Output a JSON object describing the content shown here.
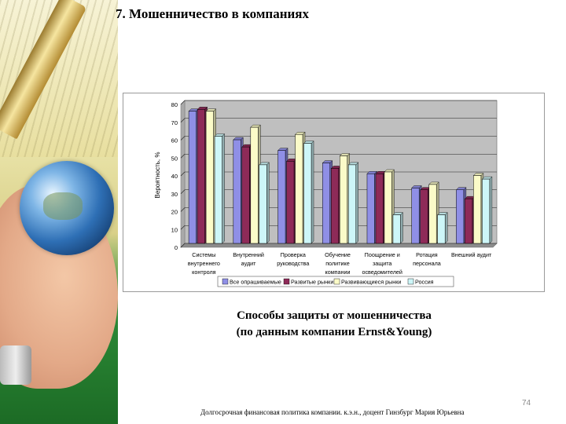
{
  "slide": {
    "title": "7. Мошенничество в компаниях",
    "caption_line1": "Способы защиты от мошенничества",
    "caption_line2": "(по данным компании Ernst&Young)",
    "footer": "Долгосрочная финансовая политика компании. к.э.н., доцент Гинзбург Мария Юрьевна",
    "page_number": "74"
  },
  "chart_data": {
    "type": "bar",
    "ylabel": "Вероятность, %",
    "ylim": [
      0,
      80
    ],
    "yticks": [
      0,
      10,
      20,
      30,
      40,
      50,
      60,
      70,
      80
    ],
    "grid": true,
    "legend_position": "bottom",
    "categories": [
      [
        "Системы",
        "внутреннего",
        "контроля"
      ],
      [
        "Внутренний",
        "аудит"
      ],
      [
        "Проверка",
        "руководства"
      ],
      [
        "Обучение",
        "политике",
        "компании"
      ],
      [
        "Поощрение и",
        "защита",
        "осведомителей"
      ],
      [
        "Ротация",
        "персонала"
      ],
      [
        "Внешний аудит"
      ]
    ],
    "series": [
      {
        "name": "Все опрашиваемые",
        "color": "#8f8fe6",
        "values": [
          74,
          58,
          52,
          45,
          39,
          31,
          30
        ]
      },
      {
        "name": "Развитые рынки",
        "color": "#8e2a58",
        "values": [
          75,
          54,
          46,
          42,
          39,
          30,
          25
        ]
      },
      {
        "name": "Развивающиеся рынки",
        "color": "#fbfbc8",
        "values": [
          74,
          65,
          61,
          49,
          40,
          33,
          38
        ]
      },
      {
        "name": "Россия",
        "color": "#cdf6f8",
        "values": [
          60,
          44,
          56,
          44,
          16,
          16,
          36
        ]
      }
    ]
  }
}
